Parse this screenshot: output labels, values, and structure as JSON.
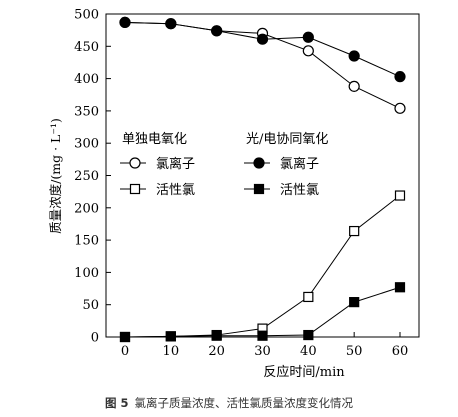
{
  "chart_data": {
    "type": "line",
    "xlabel": "反应时间/min",
    "ylabel": "质量浓度/(mg · L⁻¹)",
    "xlim": [
      0,
      60
    ],
    "ylim": [
      0,
      500
    ],
    "x_ticks": [
      0,
      10,
      20,
      30,
      40,
      50,
      60
    ],
    "y_ticks": [
      0,
      50,
      100,
      150,
      200,
      250,
      300,
      350,
      400,
      450,
      500
    ],
    "grid": false,
    "x": [
      0,
      10,
      20,
      30,
      40,
      50,
      60
    ],
    "legends": [
      {
        "title": "单独电氧化",
        "placement": "middle-left",
        "entries": [
          {
            "series": 0,
            "label": "氯离子"
          },
          {
            "series": 1,
            "label": "活性氯"
          }
        ]
      },
      {
        "title": "光/电协同氧化",
        "placement": "middle-center",
        "entries": [
          {
            "series": 2,
            "label": "氯离子"
          },
          {
            "series": 3,
            "label": "活性氯"
          }
        ]
      }
    ],
    "series": [
      {
        "name": "单独电氧化 氯离子",
        "marker": "circle",
        "filled": false,
        "values": [
          487,
          485,
          474,
          470,
          443,
          388,
          354
        ]
      },
      {
        "name": "单独电氧化 活性氯",
        "marker": "square",
        "filled": false,
        "values": [
          0,
          1,
          3,
          13,
          62,
          164,
          219
        ]
      },
      {
        "name": "光/电协同氧化 氯离子",
        "marker": "circle",
        "filled": true,
        "values": [
          487,
          485,
          474,
          461,
          464,
          435,
          403
        ]
      },
      {
        "name": "光/电协同氧化 活性氯",
        "marker": "square",
        "filled": true,
        "values": [
          0,
          1,
          2,
          2,
          3,
          54,
          77
        ]
      }
    ]
  },
  "caption": {
    "figure_label": "图 5",
    "text": "氯离子质量浓度、活性氯质量浓度变化情况"
  }
}
